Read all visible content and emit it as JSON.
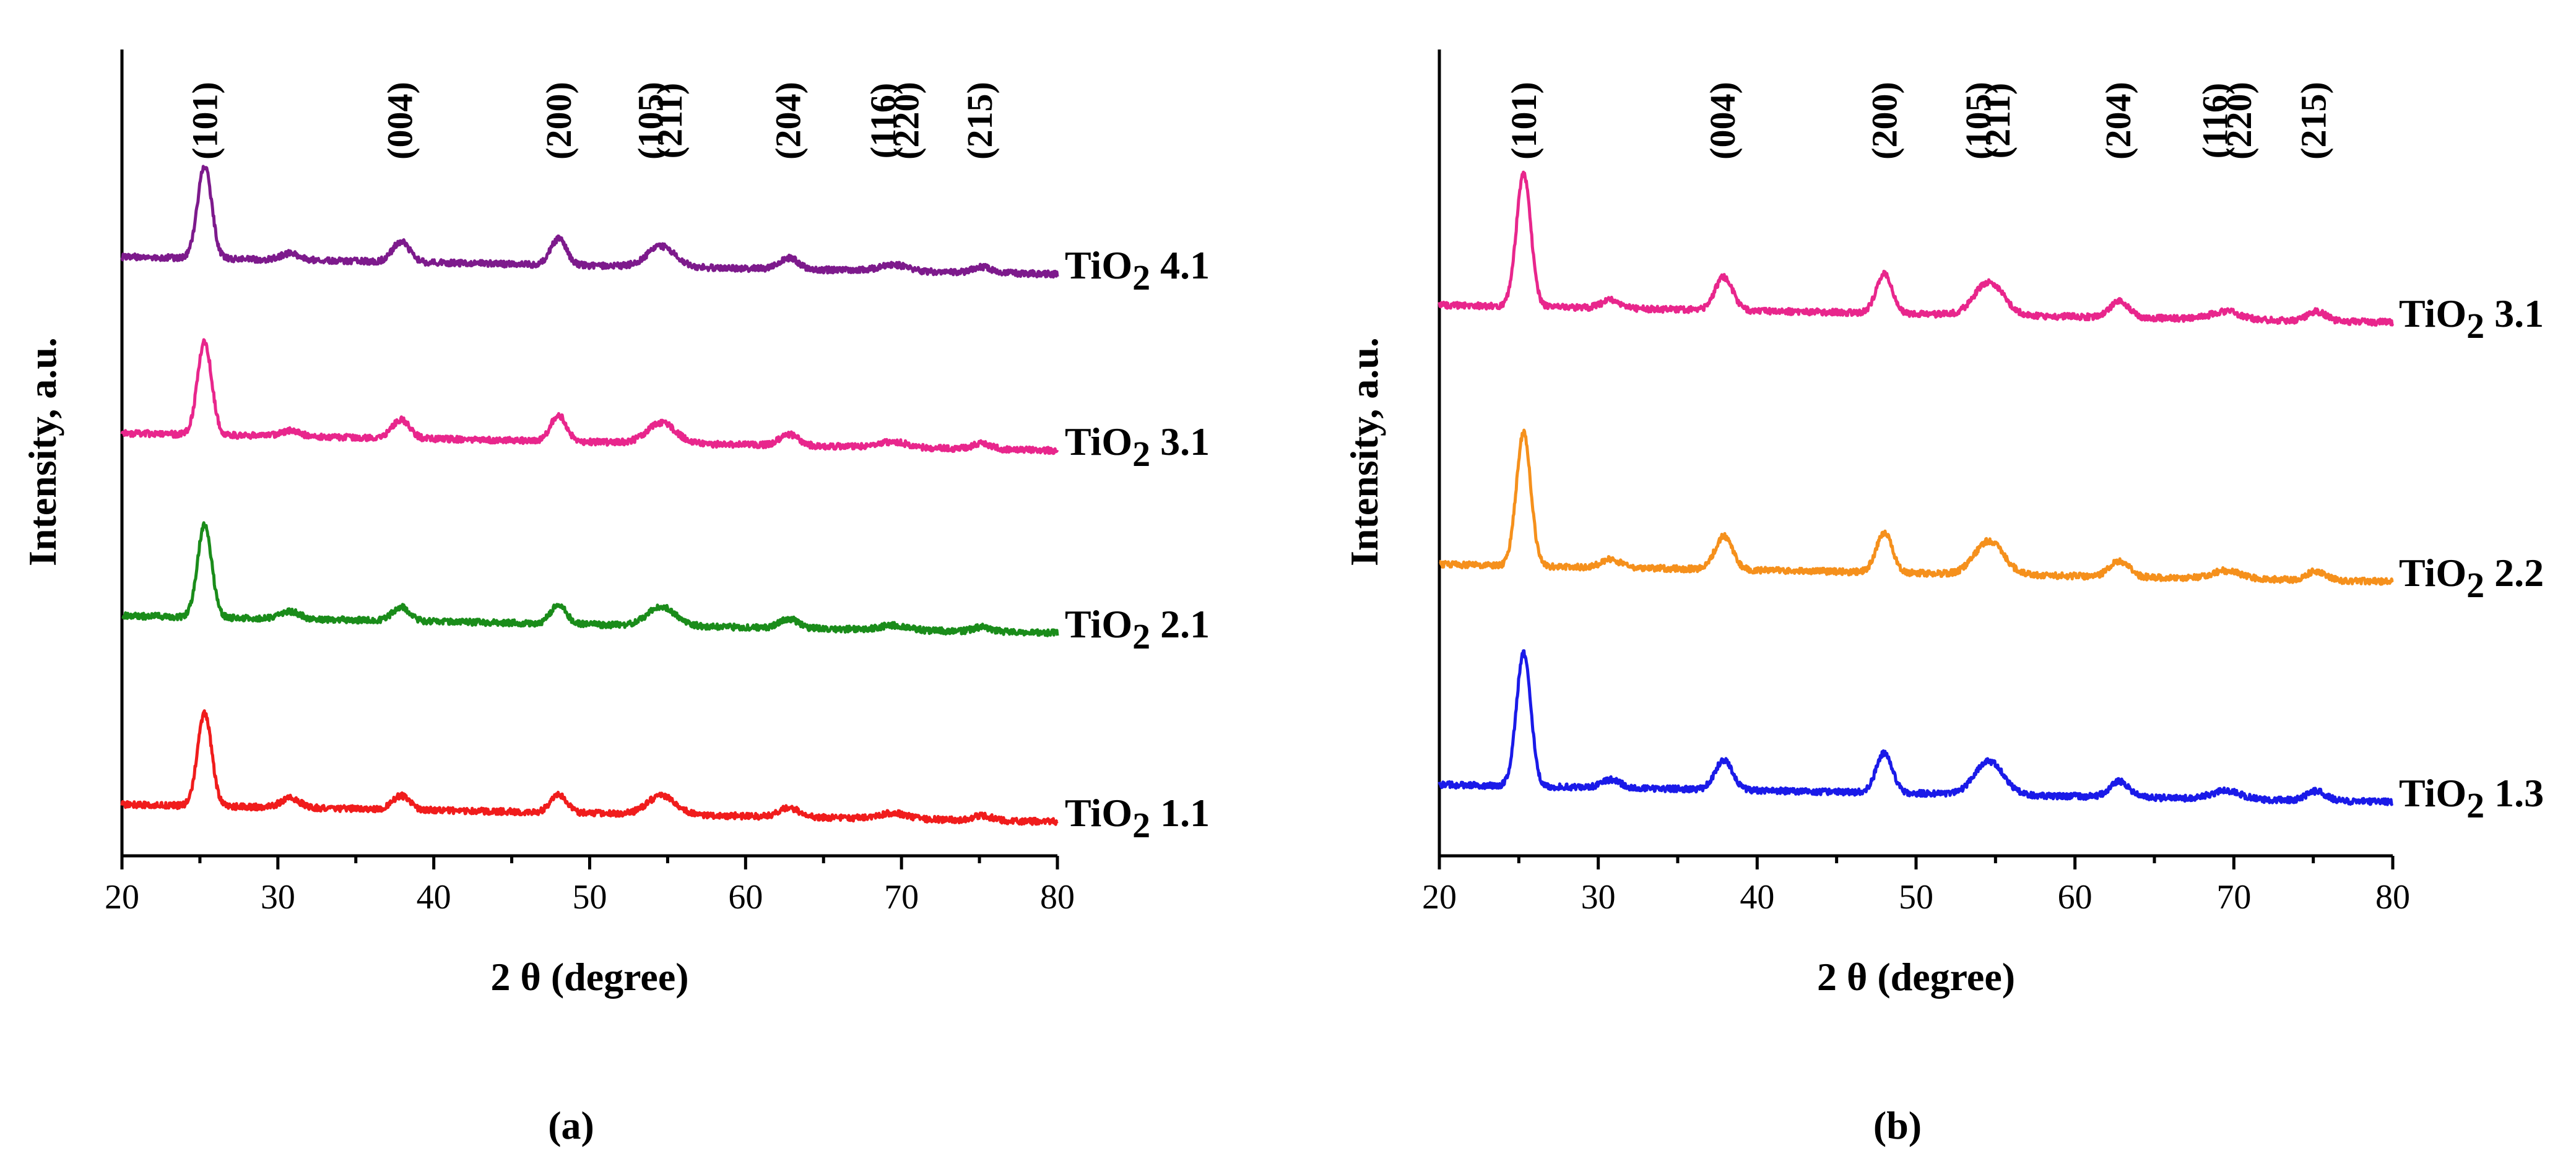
{
  "chart_data": [
    {
      "type": "line",
      "panel_label": "(a)",
      "xlabel": "2 θ (degree)",
      "ylabel": "Intensity, a.u.",
      "xlim": [
        20,
        80
      ],
      "xticks": [
        "20",
        "30",
        "40",
        "50",
        "60",
        "70",
        "80"
      ],
      "peak_labels": [
        {
          "text": "(101)",
          "x": 25.3
        },
        {
          "text": "(004)",
          "x": 37.8
        },
        {
          "text": "(200)",
          "x": 48.0
        },
        {
          "text": "(105)",
          "x": 53.9
        },
        {
          "text": "(211)",
          "x": 55.1
        },
        {
          "text": "(204)",
          "x": 62.7
        },
        {
          "text": "(116)",
          "x": 68.8
        },
        {
          "text": "(220)",
          "x": 70.3
        },
        {
          "text": "(215)",
          "x": 75.0
        }
      ],
      "series": [
        {
          "name": "TiO2 4.1",
          "subscript": "2",
          "prefix": "TiO",
          "suffix": " 4.1",
          "color": "#7d1a8c",
          "offset": 3,
          "peak_heights": [
            1.0,
            0.07,
            0.22,
            0.28,
            0.22,
            0.12,
            0.07,
            0.06
          ]
        },
        {
          "name": "TiO2 3.1",
          "subscript": "2",
          "prefix": "TiO",
          "suffix": " 3.1",
          "color": "#e8268c",
          "offset": 2,
          "peak_heights": [
            1.0,
            0.06,
            0.2,
            0.28,
            0.22,
            0.12,
            0.06,
            0.06
          ]
        },
        {
          "name": "TiO2 2.1",
          "subscript": "2",
          "prefix": "TiO",
          "suffix": " 2.1",
          "color": "#1a8c1a",
          "offset": 1,
          "peak_heights": [
            1.0,
            0.08,
            0.15,
            0.2,
            0.2,
            0.1,
            0.05,
            0.05
          ]
        },
        {
          "name": "TiO2 1.1",
          "subscript": "2",
          "prefix": "TiO",
          "suffix": " 1.1",
          "color": "#f01c1c",
          "offset": 0,
          "peak_heights": [
            1.0,
            0.1,
            0.15,
            0.2,
            0.2,
            0.1,
            0.06,
            0.05
          ]
        }
      ]
    },
    {
      "type": "line",
      "panel_label": "(b)",
      "xlabel": "2 θ (degree)",
      "ylabel": "Intensity, a.u.",
      "xlim": [
        20,
        80
      ],
      "xticks": [
        "20",
        "30",
        "40",
        "50",
        "60",
        "70",
        "80"
      ],
      "peak_labels": [
        {
          "text": "(101)",
          "x": 25.3
        },
        {
          "text": "(004)",
          "x": 37.8
        },
        {
          "text": "(200)",
          "x": 48.0
        },
        {
          "text": "(105)",
          "x": 53.9
        },
        {
          "text": "(211)",
          "x": 55.1
        },
        {
          "text": "(204)",
          "x": 62.7
        },
        {
          "text": "(116)",
          "x": 68.8
        },
        {
          "text": "(220)",
          "x": 70.3
        },
        {
          "text": "(215)",
          "x": 75.0
        }
      ],
      "series": [
        {
          "name": "TiO2 3.1",
          "subscript": "2",
          "prefix": "TiO",
          "suffix": " 3.1",
          "color": "#e8268c",
          "offset": 2,
          "peak_heights": [
            1.0,
            0.06,
            0.25,
            0.3,
            0.25,
            0.12,
            0.06,
            0.07
          ]
        },
        {
          "name": "TiO2 2.2",
          "subscript": "2",
          "prefix": "TiO",
          "suffix": " 2.2",
          "color": "#f5901c",
          "offset": 1,
          "peak_heights": [
            1.0,
            0.06,
            0.25,
            0.3,
            0.25,
            0.12,
            0.06,
            0.07
          ]
        },
        {
          "name": "TiO2 1.3",
          "subscript": "2",
          "prefix": "TiO",
          "suffix": " 1.3",
          "color": "#1a1ae8",
          "offset": 0,
          "peak_heights": [
            1.0,
            0.06,
            0.22,
            0.3,
            0.25,
            0.12,
            0.06,
            0.07
          ]
        }
      ]
    }
  ]
}
